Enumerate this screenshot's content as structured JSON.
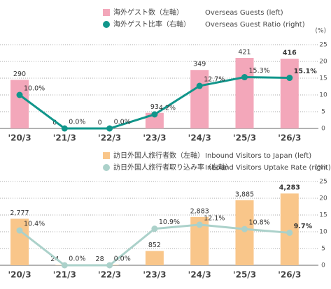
{
  "chart_data": [
    {
      "type": "combo",
      "categories": [
        "'20/3",
        "'21/3",
        "'22/3",
        "'23/3",
        "'24/3",
        "'25/3",
        "'26/3"
      ],
      "ylim": [
        0,
        500
      ],
      "y2lim": [
        0,
        25
      ],
      "y2ticks": [
        0,
        5,
        10,
        15,
        20,
        25
      ],
      "y2_label": "(%)",
      "grid": true,
      "series": [
        {
          "name": "海外ゲスト数（左軸）",
          "name_en": "Overseas Guests (left)",
          "kind": "bar",
          "color": "#f3a7ba",
          "values": [
            290,
            0,
            0,
            93,
            349,
            421,
            416
          ]
        },
        {
          "name": "海外ゲスト比率（右軸）",
          "name_en": "Overseas Guest Ratio (right)",
          "kind": "line",
          "axis": "y2",
          "color": "#11968b",
          "values": [
            10.0,
            0.0,
            0.0,
            4.2,
            12.7,
            15.3,
            15.1
          ],
          "value_labels": [
            "10.0%",
            "0.0%",
            "0.0%",
            "4.2%",
            "12.7%",
            "15.3%",
            "15.1%"
          ]
        }
      ]
    },
    {
      "type": "combo",
      "categories": [
        "'20/3",
        "'21/3",
        "'22/3",
        "'23/3",
        "'24/3",
        "'25/3",
        "'26/3"
      ],
      "ylim": [
        0,
        5000
      ],
      "y2lim": [
        0,
        25
      ],
      "y2ticks": [
        0,
        5,
        10,
        15,
        20,
        25
      ],
      "y2_label": "(%)",
      "grid": true,
      "series": [
        {
          "name": "訪日外国人旅行者数（左軸）",
          "name_en": "Inbound Visitors to Japan (left)",
          "kind": "bar",
          "color": "#f9c68a",
          "values": [
            2777,
            24,
            28,
            852,
            2883,
            3885,
            4283
          ],
          "value_labels": [
            "2,777",
            "24",
            "28",
            "852",
            "2,883",
            "3,885",
            "4,283"
          ]
        },
        {
          "name": "訪日外国人旅行者取り込み率（右軸）",
          "name_en": "Inbound Visitors Uptake Rate (right)",
          "kind": "line",
          "axis": "y2",
          "color": "#abd1ca",
          "values": [
            10.4,
            0.0,
            0.0,
            10.9,
            12.1,
            10.8,
            9.7
          ],
          "value_labels": [
            "10.4%",
            "0.0%",
            "0.0%",
            "10.9%",
            "12.1%",
            "10.8%",
            "9.7%"
          ]
        }
      ]
    }
  ]
}
